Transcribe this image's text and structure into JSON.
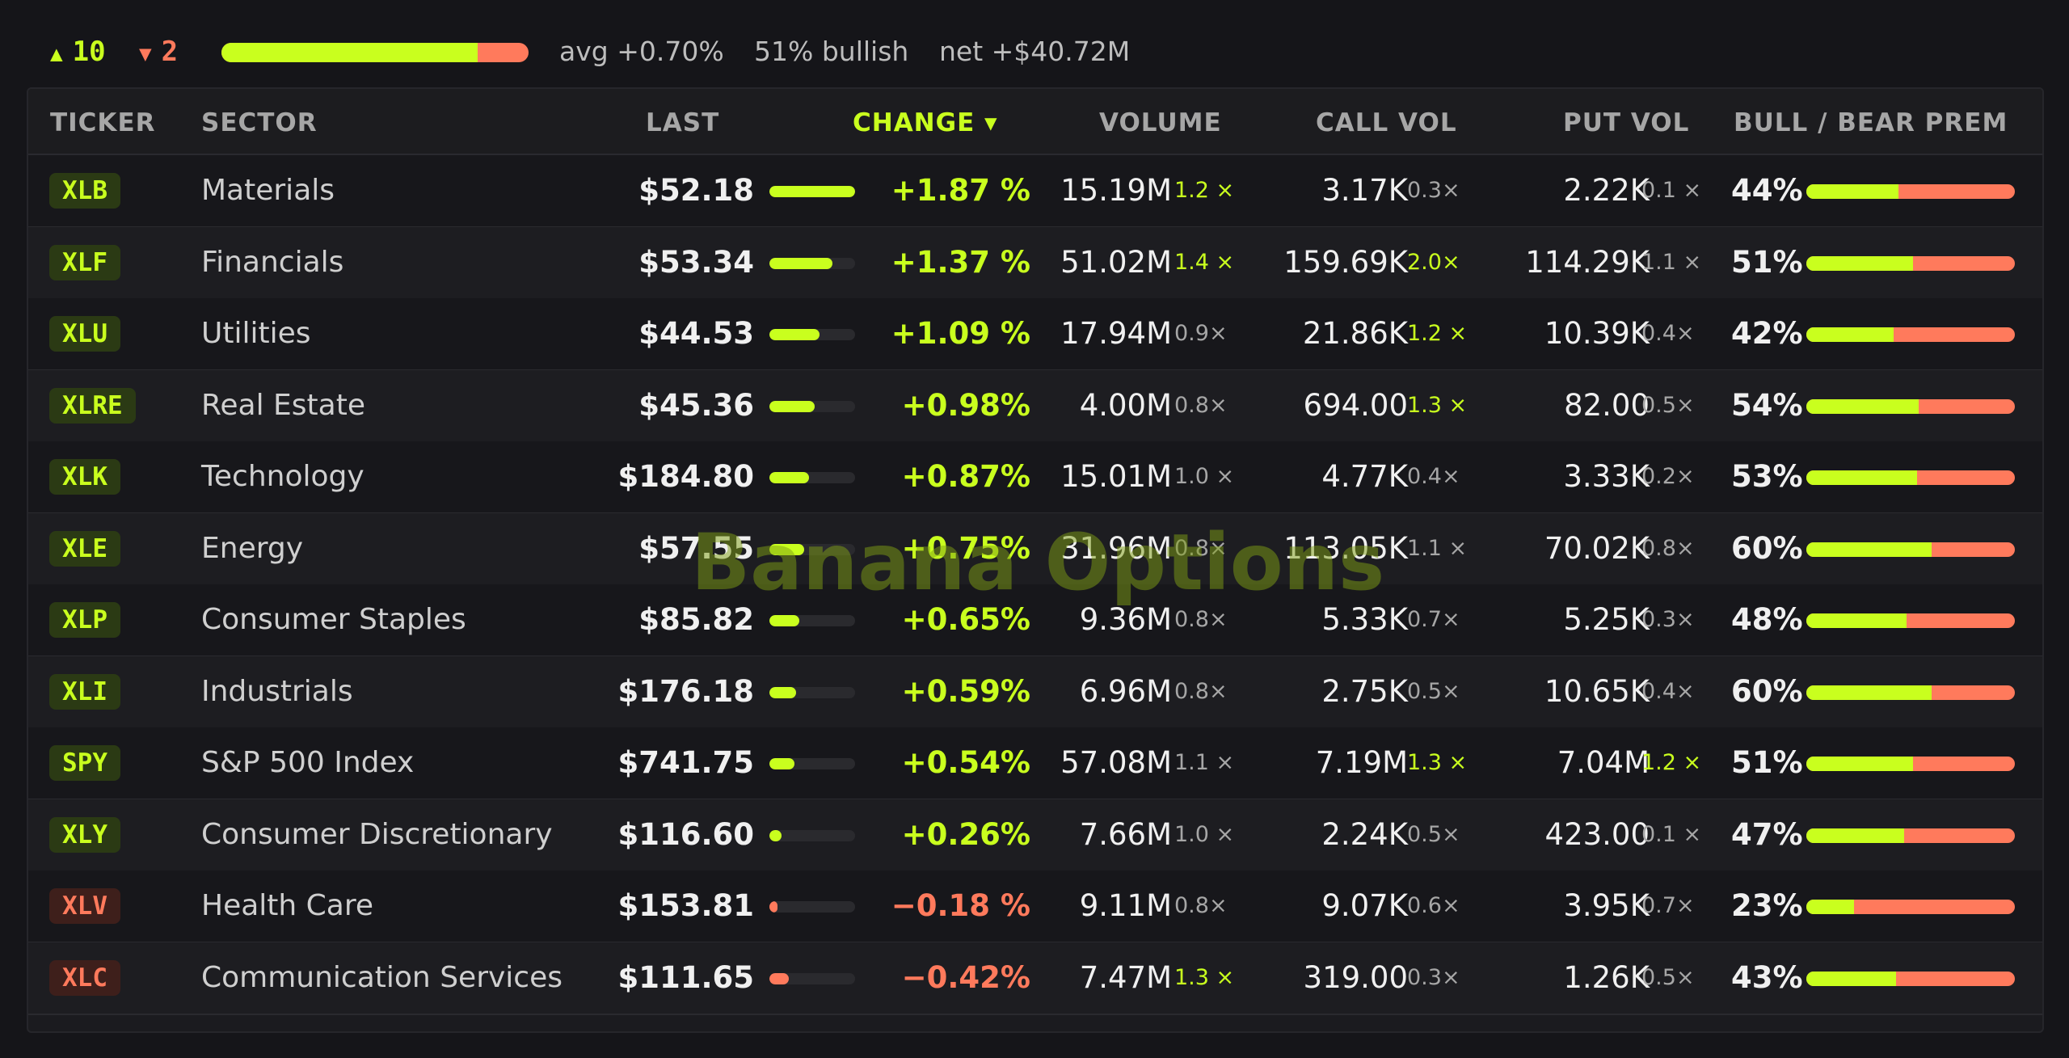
{
  "colors": {
    "up": "#c9ff1e",
    "down": "#ff7a5c",
    "background": "#151519"
  },
  "summary": {
    "advancers": "10",
    "decliners": "2",
    "up_icon": "triangle-up-icon",
    "down_icon": "triangle-down-icon",
    "advance_ratio": 0.833,
    "avg": "avg +0.70%",
    "bullish": "51% bullish",
    "net": "net +$40.72M"
  },
  "table": {
    "columns": {
      "ticker": "TICKER",
      "sector": "SECTOR",
      "last": "LAST",
      "change": "CHANGE ▾",
      "volume": "VOLUME",
      "call_vol": "CALL VOL",
      "put_vol": "PUT VOL",
      "bull_bear": "BULL / BEAR PREM"
    },
    "sorted_by": "change",
    "rows": [
      {
        "ticker": "XLB",
        "sector": "Materials",
        "last": "$52.18",
        "change": "+1.87 %",
        "change_pct": 1.87,
        "volume": "15.19M",
        "vol_mult": "1.2 ×",
        "vol_hi": true,
        "call_vol": "3.17K",
        "call_mult": "0.3×",
        "call_hi": false,
        "put_vol": "2.22K",
        "put_mult": "0.1 ×",
        "put_hi": false,
        "prem": "44%",
        "bull_pct": 0.44
      },
      {
        "ticker": "XLF",
        "sector": "Financials",
        "last": "$53.34",
        "change": "+1.37 %",
        "change_pct": 1.37,
        "volume": "51.02M",
        "vol_mult": "1.4 ×",
        "vol_hi": true,
        "call_vol": "159.69K",
        "call_mult": "2.0×",
        "call_hi": true,
        "put_vol": "114.29K",
        "put_mult": "1.1 ×",
        "put_hi": false,
        "prem": "51%",
        "bull_pct": 0.51
      },
      {
        "ticker": "XLU",
        "sector": "Utilities",
        "last": "$44.53",
        "change": "+1.09 %",
        "change_pct": 1.09,
        "volume": "17.94M",
        "vol_mult": "0.9×",
        "vol_hi": false,
        "call_vol": "21.86K",
        "call_mult": "1.2 ×",
        "call_hi": true,
        "put_vol": "10.39K",
        "put_mult": "0.4×",
        "put_hi": false,
        "prem": "42%",
        "bull_pct": 0.42
      },
      {
        "ticker": "XLRE",
        "sector": "Real Estate",
        "last": "$45.36",
        "change": "+0.98%",
        "change_pct": 0.98,
        "volume": "4.00M",
        "vol_mult": "0.8×",
        "vol_hi": false,
        "call_vol": "694.00",
        "call_mult": "1.3 ×",
        "call_hi": true,
        "put_vol": "82.00",
        "put_mult": "0.5×",
        "put_hi": false,
        "prem": "54%",
        "bull_pct": 0.54
      },
      {
        "ticker": "XLK",
        "sector": "Technology",
        "last": "$184.80",
        "change": "+0.87%",
        "change_pct": 0.87,
        "volume": "15.01M",
        "vol_mult": "1.0 ×",
        "vol_hi": false,
        "call_vol": "4.77K",
        "call_mult": "0.4×",
        "call_hi": false,
        "put_vol": "3.33K",
        "put_mult": "0.2×",
        "put_hi": false,
        "prem": "53%",
        "bull_pct": 0.53
      },
      {
        "ticker": "XLE",
        "sector": "Energy",
        "last": "$57.55",
        "change": "+0.75%",
        "change_pct": 0.75,
        "volume": "31.96M",
        "vol_mult": "0.8×",
        "vol_hi": false,
        "call_vol": "113.05K",
        "call_mult": "1.1 ×",
        "call_hi": false,
        "put_vol": "70.02K",
        "put_mult": "0.8×",
        "put_hi": false,
        "prem": "60%",
        "bull_pct": 0.6
      },
      {
        "ticker": "XLP",
        "sector": "Consumer Staples",
        "last": "$85.82",
        "change": "+0.65%",
        "change_pct": 0.65,
        "volume": "9.36M",
        "vol_mult": "0.8×",
        "vol_hi": false,
        "call_vol": "5.33K",
        "call_mult": "0.7×",
        "call_hi": false,
        "put_vol": "5.25K",
        "put_mult": "0.3×",
        "put_hi": false,
        "prem": "48%",
        "bull_pct": 0.48
      },
      {
        "ticker": "XLI",
        "sector": "Industrials",
        "last": "$176.18",
        "change": "+0.59%",
        "change_pct": 0.59,
        "volume": "6.96M",
        "vol_mult": "0.8×",
        "vol_hi": false,
        "call_vol": "2.75K",
        "call_mult": "0.5×",
        "call_hi": false,
        "put_vol": "10.65K",
        "put_mult": "0.4×",
        "put_hi": false,
        "prem": "60%",
        "bull_pct": 0.6
      },
      {
        "ticker": "SPY",
        "sector": "S&P 500 Index",
        "last": "$741.75",
        "change": "+0.54%",
        "change_pct": 0.54,
        "volume": "57.08M",
        "vol_mult": "1.1 ×",
        "vol_hi": false,
        "call_vol": "7.19M",
        "call_mult": "1.3 ×",
        "call_hi": true,
        "put_vol": "7.04M",
        "put_mult": "1.2 ×",
        "put_hi": true,
        "prem": "51%",
        "bull_pct": 0.51
      },
      {
        "ticker": "XLY",
        "sector": "Consumer Discretionary",
        "last": "$116.60",
        "change": "+0.26%",
        "change_pct": 0.26,
        "volume": "7.66M",
        "vol_mult": "1.0 ×",
        "vol_hi": false,
        "call_vol": "2.24K",
        "call_mult": "0.5×",
        "call_hi": false,
        "put_vol": "423.00",
        "put_mult": "0.1 ×",
        "put_hi": false,
        "prem": "47%",
        "bull_pct": 0.47
      },
      {
        "ticker": "XLV",
        "sector": "Health Care",
        "last": "$153.81",
        "change": "−0.18 %",
        "change_pct": -0.18,
        "volume": "9.11M",
        "vol_mult": "0.8×",
        "vol_hi": false,
        "call_vol": "9.07K",
        "call_mult": "0.6×",
        "call_hi": false,
        "put_vol": "3.95K",
        "put_mult": "0.7×",
        "put_hi": false,
        "prem": "23%",
        "bull_pct": 0.23
      },
      {
        "ticker": "XLC",
        "sector": "Communication Services",
        "last": "$111.65",
        "change": "−0.42%",
        "change_pct": -0.42,
        "volume": "7.47M",
        "vol_mult": "1.3 ×",
        "vol_hi": true,
        "call_vol": "319.00",
        "call_mult": "0.3×",
        "call_hi": false,
        "put_vol": "1.26K",
        "put_mult": "0.5×",
        "put_hi": false,
        "prem": "43%",
        "bull_pct": 0.43
      }
    ]
  },
  "watermark": "Banana Options"
}
